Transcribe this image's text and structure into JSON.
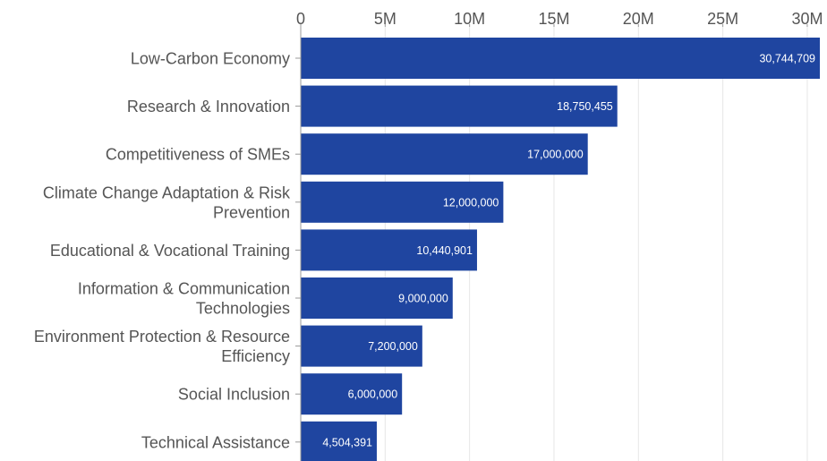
{
  "chart_data": {
    "type": "bar",
    "orientation": "horizontal",
    "categories": [
      [
        "Low-Carbon Economy"
      ],
      [
        "Research & Innovation"
      ],
      [
        "Competitiveness of SMEs"
      ],
      [
        "Climate Change Adaptation & Risk",
        "Prevention"
      ],
      [
        "Educational & Vocational Training"
      ],
      [
        "Information & Communication",
        "Technologies"
      ],
      [
        "Environment Protection & Resource",
        "Efficiency"
      ],
      [
        "Social Inclusion"
      ],
      [
        "Technical Assistance"
      ]
    ],
    "values": [
      30744709,
      18750455,
      17000000,
      12000000,
      10440901,
      9000000,
      7200000,
      6000000,
      4504391
    ],
    "value_labels": [
      "30,744,709",
      "18,750,455",
      "17,000,000",
      "12,000,000",
      "10,440,901",
      "9,000,000",
      "7,200,000",
      "6,000,000",
      "4,504,391"
    ],
    "x_ticks": [
      0,
      5000000,
      10000000,
      15000000,
      20000000,
      25000000,
      30000000
    ],
    "x_tick_labels": [
      "0",
      "5M",
      "10M",
      "15M",
      "20M",
      "25M",
      "30M"
    ],
    "xlim": [
      0,
      30744709
    ],
    "grid": true,
    "x_axis_position": "top",
    "bar_color": "#1f45a0",
    "value_label_color": "#ffffff",
    "text_color": "#555555"
  }
}
